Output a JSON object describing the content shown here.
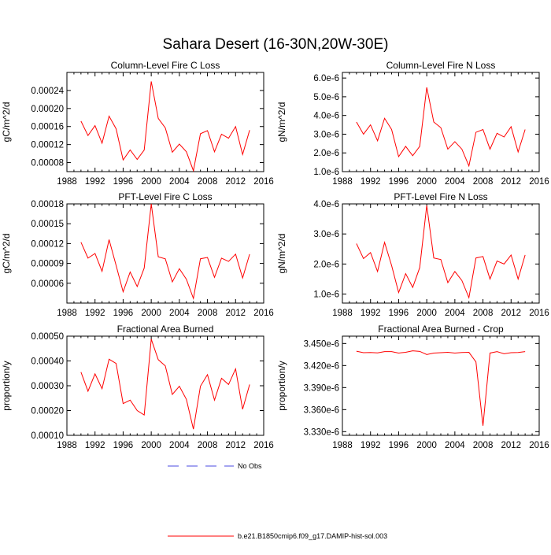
{
  "title": "Sahara Desert (16-30N,20W-30E)",
  "legend": {
    "obs_label": "No Obs",
    "model_label": "b.e21.B1850cmip6.f09_g17.DAMIP-hist-sol.003",
    "obs_color": "#4a4ae0",
    "model_color": "#ff0000"
  },
  "chart_data": [
    {
      "type": "line",
      "title": "Column-Level Fire C Loss",
      "ylabel": "gC/m^2/d",
      "xlim": [
        1988,
        2016
      ],
      "ylim": [
        6e-05,
        0.00028
      ],
      "x_ticks": [
        "1988",
        "1992",
        "1996",
        "2000",
        "2004",
        "2008",
        "2012",
        "2016"
      ],
      "y_ticks": [
        8e-05,
        0.00012,
        0.00016,
        0.0002,
        0.00024
      ],
      "y_tick_labels": [
        "0.00008",
        "0.00012",
        "0.00016",
        "0.00020",
        "0.00024"
      ],
      "series": [
        {
          "x": [
            1990,
            1991,
            1992,
            1993,
            1994,
            1995,
            1996,
            1997,
            1998,
            1999,
            2000,
            2001,
            2002,
            2003,
            2004,
            2005,
            2006,
            2007,
            2008,
            2009,
            2010,
            2011,
            2012,
            2013,
            2014
          ],
          "values": [
            0.000172,
            0.00014,
            0.000162,
            0.000123,
            0.000183,
            0.000155,
            8.6e-05,
            0.000108,
            8.7e-05,
            0.000108,
            0.00026,
            0.000178,
            0.000157,
            0.000103,
            0.000121,
            0.000104,
            6.2e-05,
            0.000144,
            0.000151,
            0.000104,
            0.000143,
            0.000134,
            0.00016,
            9.8e-05,
            0.000152
          ]
        }
      ]
    },
    {
      "type": "line",
      "title": "Column-Level Fire N Loss",
      "ylabel": "gN/m^2/d",
      "xlim": [
        1988,
        2016
      ],
      "ylim": [
        1e-06,
        6.3e-06
      ],
      "x_ticks": [
        "1988",
        "1992",
        "1996",
        "2000",
        "2004",
        "2008",
        "2012",
        "2016"
      ],
      "y_ticks": [
        1e-06,
        2e-06,
        3e-06,
        4e-06,
        5e-06,
        6e-06
      ],
      "y_tick_labels": [
        "1.0e-6",
        "2.0e-6",
        "3.0e-6",
        "4.0e-6",
        "5.0e-6",
        "6.0e-6"
      ],
      "series": [
        {
          "x": [
            1990,
            1991,
            1992,
            1993,
            1994,
            1995,
            1996,
            1997,
            1998,
            1999,
            2000,
            2001,
            2002,
            2003,
            2004,
            2005,
            2006,
            2007,
            2008,
            2009,
            2010,
            2011,
            2012,
            2013,
            2014
          ],
          "values": [
            3.65e-06,
            3e-06,
            3.5e-06,
            2.65e-06,
            3.85e-06,
            3.25e-06,
            1.8e-06,
            2.35e-06,
            1.85e-06,
            2.35e-06,
            5.5e-06,
            3.65e-06,
            3.35e-06,
            2.2e-06,
            2.6e-06,
            2.2e-06,
            1.3e-06,
            3.1e-06,
            3.25e-06,
            2.2e-06,
            3.05e-06,
            2.85e-06,
            3.4e-06,
            2.05e-06,
            3.25e-06
          ]
        }
      ]
    },
    {
      "type": "line",
      "title": "PFT-Level Fire C Loss",
      "ylabel": "gC/m^2/d",
      "xlim": [
        1988,
        2016
      ],
      "ylim": [
        3e-05,
        0.00018
      ],
      "x_ticks": [
        "1988",
        "1992",
        "1996",
        "2000",
        "2004",
        "2008",
        "2012",
        "2016"
      ],
      "y_ticks": [
        6e-05,
        9e-05,
        0.00012,
        0.00015,
        0.00018
      ],
      "y_tick_labels": [
        "0.00006",
        "0.00009",
        "0.00012",
        "0.00015",
        "0.00018"
      ],
      "series": [
        {
          "x": [
            1990,
            1991,
            1992,
            1993,
            1994,
            1995,
            1996,
            1997,
            1998,
            1999,
            2000,
            2001,
            2002,
            2003,
            2004,
            2005,
            2006,
            2007,
            2008,
            2009,
            2010,
            2011,
            2012,
            2013,
            2014
          ],
          "values": [
            0.000122,
            9.8e-05,
            0.000105,
            7.8e-05,
            0.000126,
            8.7e-05,
            4.7e-05,
            7.7e-05,
            5.5e-05,
            8.3e-05,
            0.00018,
            0.0001,
            9.7e-05,
            6.2e-05,
            8.2e-05,
            6.6e-05,
            3.7e-05,
            9.7e-05,
            9.9e-05,
            6.9e-05,
            9.8e-05,
            9.3e-05,
            0.000104,
            6.8e-05,
            0.000104
          ]
        }
      ]
    },
    {
      "type": "line",
      "title": "PFT-Level Fire N Loss",
      "ylabel": "gN/m^2/d",
      "xlim": [
        1988,
        2016
      ],
      "ylim": [
        7e-07,
        4e-06
      ],
      "x_ticks": [
        "1988",
        "1992",
        "1996",
        "2000",
        "2004",
        "2008",
        "2012",
        "2016"
      ],
      "y_ticks": [
        1e-06,
        2e-06,
        3e-06,
        4e-06
      ],
      "y_tick_labels": [
        "1.0e-6",
        "2.0e-6",
        "3.0e-6",
        "4.0e-6"
      ],
      "series": [
        {
          "x": [
            1990,
            1991,
            1992,
            1993,
            1994,
            1995,
            1996,
            1997,
            1998,
            1999,
            2000,
            2001,
            2002,
            2003,
            2004,
            2005,
            2006,
            2007,
            2008,
            2009,
            2010,
            2011,
            2012,
            2013,
            2014
          ],
          "values": [
            2.68e-06,
            2.18e-06,
            2.38e-06,
            1.75e-06,
            2.72e-06,
            1.95e-06,
            1.05e-06,
            1.68e-06,
            1.22e-06,
            1.88e-06,
            3.95e-06,
            2.2e-06,
            2.15e-06,
            1.38e-06,
            1.75e-06,
            1.45e-06,
            8.8e-07,
            2.2e-06,
            2.25e-06,
            1.5e-06,
            2.1e-06,
            2e-06,
            2.3e-06,
            1.5e-06,
            2.3e-06
          ]
        }
      ]
    },
    {
      "type": "line",
      "title": "Fractional Area Burned",
      "ylabel": "proportion/y",
      "xlim": [
        1988,
        2016
      ],
      "ylim": [
        0.0001,
        0.0005
      ],
      "x_ticks": [
        "1988",
        "1992",
        "1996",
        "2000",
        "2004",
        "2008",
        "2012",
        "2016"
      ],
      "y_ticks": [
        0.0001,
        0.0002,
        0.0003,
        0.0004,
        0.0005
      ],
      "y_tick_labels": [
        "0.00010",
        "0.00020",
        "0.00030",
        "0.00040",
        "0.00050"
      ],
      "series": [
        {
          "x": [
            1990,
            1991,
            1992,
            1993,
            1994,
            1995,
            1996,
            1997,
            1998,
            1999,
            2000,
            2001,
            2002,
            2003,
            2004,
            2005,
            2006,
            2007,
            2008,
            2009,
            2010,
            2011,
            2012,
            2013,
            2014
          ],
          "values": [
            0.000355,
            0.000278,
            0.000348,
            0.000288,
            0.000407,
            0.00039,
            0.000228,
            0.000242,
            0.0002,
            0.000182,
            0.000488,
            0.000405,
            0.00038,
            0.000265,
            0.000298,
            0.000245,
            0.000125,
            0.000298,
            0.000345,
            0.000242,
            0.00033,
            0.000305,
            0.000368,
            0.000205,
            0.000305
          ]
        }
      ]
    },
    {
      "type": "line",
      "title": "Fractional Area Burned - Crop",
      "ylabel": "proportion/y",
      "xlim": [
        1988,
        2016
      ],
      "ylim": [
        3.325e-06,
        3.46e-06
      ],
      "x_ticks": [
        "1988",
        "1992",
        "1996",
        "2000",
        "2004",
        "2008",
        "2012",
        "2016"
      ],
      "y_ticks": [
        3.33e-06,
        3.36e-06,
        3.39e-06,
        3.42e-06,
        3.45e-06
      ],
      "y_tick_labels": [
        "3.330e-6",
        "3.360e-6",
        "3.390e-6",
        "3.420e-6",
        "3.450e-6"
      ],
      "series": [
        {
          "x": [
            1990,
            1991,
            1992,
            1993,
            1994,
            1995,
            1996,
            1997,
            1998,
            1999,
            2000,
            2001,
            2002,
            2003,
            2004,
            2005,
            2006,
            2007,
            2008,
            2009,
            2010,
            2011,
            2012,
            2013,
            2014
          ],
          "values": [
            3.4395e-06,
            3.4375e-06,
            3.4378e-06,
            3.4372e-06,
            3.439e-06,
            3.439e-06,
            3.437e-06,
            3.438e-06,
            3.44e-06,
            3.4393e-06,
            3.435e-06,
            3.437e-06,
            3.4375e-06,
            3.438e-06,
            3.437e-06,
            3.4378e-06,
            3.438e-06,
            3.425e-06,
            3.338e-06,
            3.437e-06,
            3.439e-06,
            3.436e-06,
            3.4375e-06,
            3.4378e-06,
            3.439e-06
          ]
        }
      ]
    }
  ]
}
